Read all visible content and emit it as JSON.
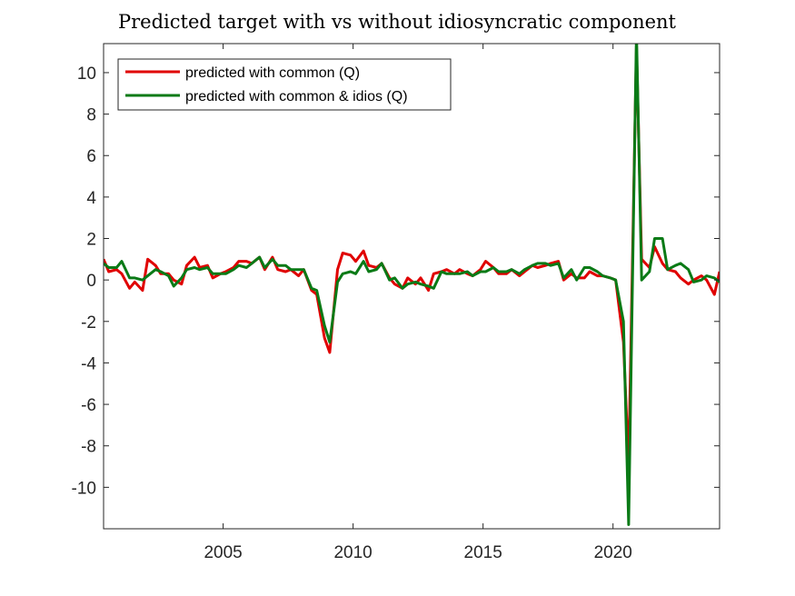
{
  "chart_data": {
    "type": "line",
    "title": "Predicted target with vs without idiosyncratic component",
    "xlabel": "",
    "ylabel": "",
    "xlim": [
      2000.4,
      2024.1
    ],
    "ylim": [
      -12,
      11.4
    ],
    "x_ticks": [
      2005,
      2010,
      2015,
      2020
    ],
    "x_tick_labels": [
      "2005",
      "2010",
      "2015",
      "2020"
    ],
    "y_ticks": [
      -10,
      -8,
      -6,
      -4,
      -2,
      0,
      2,
      4,
      6,
      8,
      10
    ],
    "y_tick_labels": [
      "-10",
      "-8",
      "-6",
      "-4",
      "-2",
      "0",
      "2",
      "4",
      "6",
      "8",
      "10"
    ],
    "grid": false,
    "legend_position": "top-left",
    "series": [
      {
        "name": "predicted with common (Q)",
        "color": "#e00000",
        "x": [
          2000.4,
          2000.6,
          2000.9,
          2001.1,
          2001.4,
          2001.6,
          2001.9,
          2002.1,
          2002.4,
          2002.6,
          2002.9,
          2003.1,
          2003.4,
          2003.6,
          2003.9,
          2004.1,
          2004.4,
          2004.6,
          2004.9,
          2005.1,
          2005.4,
          2005.6,
          2005.9,
          2006.1,
          2006.4,
          2006.6,
          2006.9,
          2007.1,
          2007.4,
          2007.6,
          2007.9,
          2008.1,
          2008.4,
          2008.6,
          2008.9,
          2009.1,
          2009.4,
          2009.6,
          2009.9,
          2010.1,
          2010.4,
          2010.6,
          2010.9,
          2011.1,
          2011.4,
          2011.6,
          2011.9,
          2012.1,
          2012.4,
          2012.6,
          2012.9,
          2013.1,
          2013.4,
          2013.6,
          2013.9,
          2014.1,
          2014.4,
          2014.6,
          2014.9,
          2015.1,
          2015.4,
          2015.6,
          2015.9,
          2016.1,
          2016.4,
          2016.6,
          2016.9,
          2017.1,
          2017.4,
          2017.6,
          2017.9,
          2018.1,
          2018.4,
          2018.6,
          2018.9,
          2019.1,
          2019.4,
          2019.6,
          2019.9,
          2020.1,
          2020.4,
          2020.6,
          2020.9,
          2021.1,
          2021.4,
          2021.6,
          2021.9,
          2022.1,
          2022.4,
          2022.6,
          2022.9,
          2023.1,
          2023.4,
          2023.6,
          2023.9,
          2024.1
        ],
        "values": [
          1.0,
          0.4,
          0.5,
          0.3,
          -0.4,
          -0.1,
          -0.5,
          1.0,
          0.7,
          0.3,
          0.3,
          0.0,
          -0.2,
          0.7,
          1.1,
          0.6,
          0.7,
          0.1,
          0.3,
          0.4,
          0.6,
          0.9,
          0.9,
          0.8,
          1.1,
          0.5,
          1.1,
          0.5,
          0.4,
          0.5,
          0.2,
          0.5,
          -0.5,
          -0.7,
          -2.8,
          -3.5,
          0.5,
          1.3,
          1.2,
          0.9,
          1.4,
          0.7,
          0.6,
          0.8,
          0.1,
          -0.2,
          -0.4,
          0.1,
          -0.2,
          0.1,
          -0.5,
          0.3,
          0.4,
          0.5,
          0.3,
          0.5,
          0.3,
          0.2,
          0.5,
          0.9,
          0.6,
          0.3,
          0.3,
          0.5,
          0.2,
          0.4,
          0.7,
          0.6,
          0.7,
          0.8,
          0.9,
          0.0,
          0.3,
          0.1,
          0.1,
          0.4,
          0.2,
          0.2,
          0.1,
          0.0,
          -3.0,
          -9.0,
          11.3,
          1.0,
          0.6,
          1.6,
          0.8,
          0.5,
          0.4,
          0.1,
          -0.2,
          0.0,
          0.2,
          0.0,
          -0.7,
          0.4
        ]
      },
      {
        "name": "predicted with common & idios (Q)",
        "color": "#0a7a16",
        "x": [
          2000.4,
          2000.6,
          2000.9,
          2001.1,
          2001.4,
          2001.6,
          2001.9,
          2002.1,
          2002.4,
          2002.6,
          2002.9,
          2003.1,
          2003.4,
          2003.6,
          2003.9,
          2004.1,
          2004.4,
          2004.6,
          2004.9,
          2005.1,
          2005.4,
          2005.6,
          2005.9,
          2006.1,
          2006.4,
          2006.6,
          2006.9,
          2007.1,
          2007.4,
          2007.6,
          2007.9,
          2008.1,
          2008.4,
          2008.6,
          2008.9,
          2009.1,
          2009.4,
          2009.6,
          2009.9,
          2010.1,
          2010.4,
          2010.6,
          2010.9,
          2011.1,
          2011.4,
          2011.6,
          2011.9,
          2012.1,
          2012.4,
          2012.6,
          2012.9,
          2013.1,
          2013.4,
          2013.6,
          2013.9,
          2014.1,
          2014.4,
          2014.6,
          2014.9,
          2015.1,
          2015.4,
          2015.6,
          2015.9,
          2016.1,
          2016.4,
          2016.6,
          2016.9,
          2017.1,
          2017.4,
          2017.6,
          2017.9,
          2018.1,
          2018.4,
          2018.6,
          2018.9,
          2019.1,
          2019.4,
          2019.6,
          2019.9,
          2020.1,
          2020.4,
          2020.6,
          2020.9,
          2021.1,
          2021.4,
          2021.6,
          2021.9,
          2022.1,
          2022.4,
          2022.6,
          2022.9,
          2023.1,
          2023.4,
          2023.6,
          2023.9,
          2024.1
        ],
        "values": [
          0.8,
          0.6,
          0.6,
          0.9,
          0.1,
          0.1,
          0.0,
          0.2,
          0.5,
          0.4,
          0.2,
          -0.3,
          0.1,
          0.5,
          0.6,
          0.5,
          0.6,
          0.3,
          0.3,
          0.3,
          0.5,
          0.7,
          0.6,
          0.8,
          1.1,
          0.6,
          1.0,
          0.7,
          0.7,
          0.5,
          0.5,
          0.5,
          -0.4,
          -0.5,
          -2.2,
          -3.0,
          -0.1,
          0.3,
          0.4,
          0.3,
          0.9,
          0.4,
          0.5,
          0.8,
          0.0,
          0.1,
          -0.4,
          -0.2,
          -0.1,
          -0.2,
          -0.3,
          -0.4,
          0.4,
          0.3,
          0.3,
          0.3,
          0.4,
          0.2,
          0.4,
          0.4,
          0.6,
          0.4,
          0.4,
          0.5,
          0.3,
          0.5,
          0.7,
          0.8,
          0.8,
          0.7,
          0.8,
          0.1,
          0.5,
          0.0,
          0.6,
          0.6,
          0.4,
          0.2,
          0.1,
          0.0,
          -2.0,
          -11.8,
          12.0,
          0.0,
          0.4,
          2.0,
          2.0,
          0.5,
          0.7,
          0.8,
          0.5,
          -0.1,
          0.0,
          0.2,
          0.1,
          -0.1
        ]
      }
    ]
  }
}
